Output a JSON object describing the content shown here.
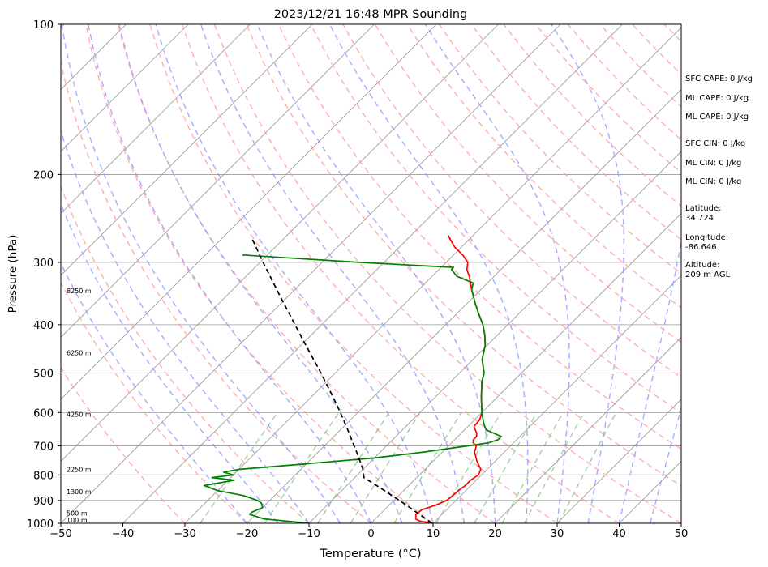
{
  "chart_data": {
    "type": "skew-t log-p sounding",
    "title": "2023/12/21 16:48 MPR Sounding",
    "xlabel": "Temperature (°C)",
    "ylabel": "Pressure (hPa)",
    "xlim": [
      -50,
      50
    ],
    "ylim": [
      1000,
      100
    ],
    "y_scale": "log",
    "x_ticks": [
      "−50",
      "−40",
      "−30",
      "−20",
      "−10",
      "0",
      "10",
      "20",
      "30",
      "40",
      "50"
    ],
    "y_ticks": [
      "100",
      "200",
      "300",
      "400",
      "500",
      "600",
      "700",
      "800",
      "900",
      "1000"
    ],
    "height_labels": [
      {
        "p": 985,
        "label": "100 m"
      },
      {
        "p": 955,
        "label": "500 m"
      },
      {
        "p": 865,
        "label": "1300 m"
      },
      {
        "p": 780,
        "label": "2250 m"
      },
      {
        "p": 605,
        "label": "4250 m"
      },
      {
        "p": 455,
        "label": "6250 m"
      },
      {
        "p": 342,
        "label": "8250 m"
      }
    ],
    "series": [
      {
        "key": "temperature",
        "color": "#ff0000",
        "points": [
          [
            1000,
            10
          ],
          [
            990,
            7.5
          ],
          [
            980,
            6.5
          ],
          [
            960,
            5.8
          ],
          [
            940,
            6
          ],
          [
            920,
            7.5
          ],
          [
            900,
            8.5
          ],
          [
            880,
            8.7
          ],
          [
            860,
            8.8
          ],
          [
            840,
            9.1
          ],
          [
            820,
            9.1
          ],
          [
            800,
            9.5
          ],
          [
            780,
            9
          ],
          [
            750,
            7
          ],
          [
            720,
            5.2
          ],
          [
            700,
            4.5
          ],
          [
            690,
            3.5
          ],
          [
            680,
            3
          ],
          [
            670,
            3
          ],
          [
            660,
            2.5
          ],
          [
            640,
            1
          ],
          [
            620,
            0.8
          ],
          [
            600,
            0
          ],
          [
            560,
            -2.5
          ],
          [
            520,
            -5
          ],
          [
            500,
            -6
          ],
          [
            470,
            -8.5
          ],
          [
            440,
            -10.3
          ],
          [
            420,
            -12
          ],
          [
            400,
            -14
          ],
          [
            380,
            -16.5
          ],
          [
            360,
            -19
          ],
          [
            340,
            -21.5
          ],
          [
            320,
            -24
          ],
          [
            310,
            -25.5
          ],
          [
            300,
            -26.5
          ],
          [
            290,
            -28.5
          ],
          [
            280,
            -31
          ],
          [
            270,
            -33
          ],
          [
            265,
            -34
          ]
        ]
      },
      {
        "key": "dewpoint",
        "color": "#008000",
        "points": [
          [
            1000,
            -10
          ],
          [
            990,
            -14
          ],
          [
            980,
            -18
          ],
          [
            960,
            -21
          ],
          [
            950,
            -21
          ],
          [
            930,
            -20
          ],
          [
            910,
            -21
          ],
          [
            900,
            -22
          ],
          [
            880,
            -25
          ],
          [
            860,
            -30
          ],
          [
            840,
            -33
          ],
          [
            820,
            -29
          ],
          [
            810,
            -33
          ],
          [
            800,
            -30
          ],
          [
            790,
            -32
          ],
          [
            780,
            -30
          ],
          [
            760,
            -20
          ],
          [
            740,
            -10
          ],
          [
            720,
            -3
          ],
          [
            700,
            3
          ],
          [
            690,
            6
          ],
          [
            680,
            7
          ],
          [
            670,
            7
          ],
          [
            650,
            3.5
          ],
          [
            630,
            2
          ],
          [
            600,
            0
          ],
          [
            560,
            -2.5
          ],
          [
            520,
            -5
          ],
          [
            500,
            -6
          ],
          [
            470,
            -8.5
          ],
          [
            440,
            -10.3
          ],
          [
            420,
            -12
          ],
          [
            400,
            -14
          ],
          [
            380,
            -16.5
          ],
          [
            360,
            -19
          ],
          [
            340,
            -21.5
          ],
          [
            330,
            -22.3
          ],
          [
            320,
            -26
          ],
          [
            310,
            -28
          ],
          [
            307,
            -28
          ],
          [
            300,
            -44
          ],
          [
            290,
            -64
          ]
        ]
      },
      {
        "key": "parcel",
        "color": "#000000",
        "dashed": true,
        "points": [
          [
            1000,
            9.8
          ],
          [
            980,
            8.1
          ],
          [
            960,
            6.4
          ],
          [
            940,
            4.6
          ],
          [
            920,
            2.8
          ],
          [
            900,
            0.9
          ],
          [
            880,
            -1.1
          ],
          [
            860,
            -3.1
          ],
          [
            840,
            -5.2
          ],
          [
            820,
            -7.4
          ],
          [
            810,
            -8.5
          ],
          [
            800,
            -9.0
          ],
          [
            780,
            -10.0
          ],
          [
            760,
            -11.2
          ],
          [
            740,
            -12.5
          ],
          [
            720,
            -13.8
          ],
          [
            700,
            -15.2
          ],
          [
            650,
            -18.8
          ],
          [
            600,
            -22.8
          ],
          [
            550,
            -27.3
          ],
          [
            500,
            -32.3
          ],
          [
            450,
            -38.0
          ],
          [
            400,
            -44.3
          ],
          [
            350,
            -51.4
          ],
          [
            300,
            -59.5
          ],
          [
            270,
            -64.9
          ]
        ]
      }
    ]
  },
  "indices": [
    {
      "label": "SFC CAPE: 0 J/kg"
    },
    {
      "label": "ML CAPE: 0 J/kg"
    },
    {
      "label": "ML CAPE: 0 J/kg"
    },
    {
      "label": "SFC CIN: 0 J/kg"
    },
    {
      "label": "ML CIN: 0 J/kg"
    },
    {
      "label": "ML CIN: 0 J/kg"
    }
  ],
  "location": {
    "latitude_label": "Latitude:",
    "latitude_value": "34.724",
    "longitude_label": "Longitude:",
    "longitude_value": "-86.646",
    "altitude_label": "Altitude:",
    "altitude_value": "209 m AGL"
  },
  "style": {
    "dry_adiabat_color": "#ff9a9a",
    "moist_adiabat_color": "#9a9aff",
    "mixing_ratio_color": "#7fc47f",
    "isotherm_color": "#999999"
  }
}
